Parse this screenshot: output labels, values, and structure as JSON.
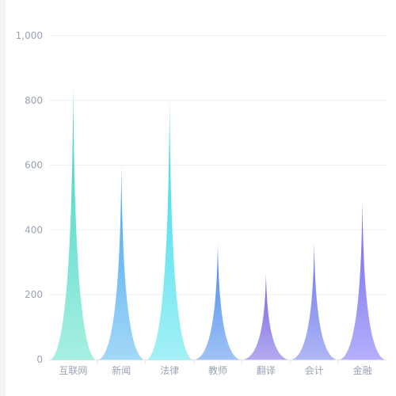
{
  "chart_data": {
    "type": "bar",
    "title": "",
    "xlabel": "",
    "ylabel": "",
    "ylim": [
      0,
      1000
    ],
    "yticks": [
      "0",
      "200",
      "400",
      "600",
      "800",
      "1,000"
    ],
    "grid": true,
    "categories": [
      "互联网",
      "新闻",
      "法律",
      "教师",
      "翻译",
      "会计",
      "金融"
    ],
    "values": [
      850,
      600,
      800,
      360,
      265,
      360,
      490
    ],
    "colors": [
      {
        "top": "#33d2c0",
        "bottom": "#a7efe2"
      },
      {
        "top": "#3fa0f0",
        "bottom": "#a3d8f7"
      },
      {
        "top": "#2ed9e8",
        "bottom": "#a4f0f7"
      },
      {
        "top": "#4687ea",
        "bottom": "#9fc2f5"
      },
      {
        "top": "#6f66e0",
        "bottom": "#b3a9f0"
      },
      {
        "top": "#6a77ea",
        "bottom": "#aeb6f4"
      },
      {
        "top": "#6d62e8",
        "bottom": "#b4b0fb"
      }
    ]
  }
}
